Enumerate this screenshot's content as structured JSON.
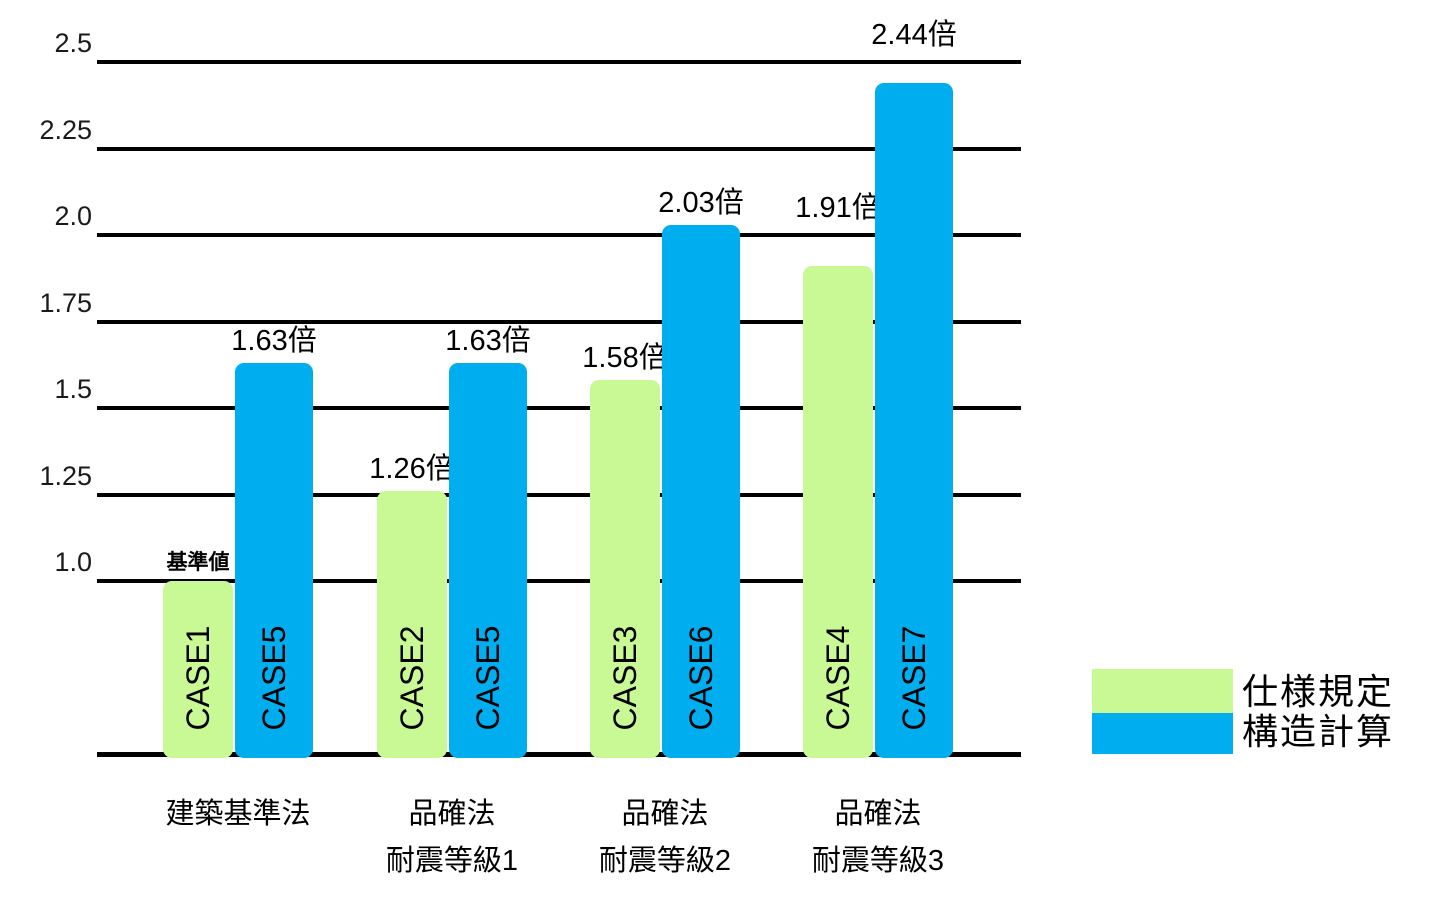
{
  "chart_data": {
    "type": "bar",
    "title": "",
    "background": "#FFFFFF",
    "grid_color": "#000000",
    "text_color": "#000000",
    "y_axis": {
      "min": 0.5,
      "max": 2.5,
      "tick_step": 0.25,
      "gridlines": true,
      "ticks": [
        {
          "value": 2.5,
          "label": "2.5"
        },
        {
          "value": 2.25,
          "label": "2.25"
        },
        {
          "value": 2.0,
          "label": "2.0"
        },
        {
          "value": 1.75,
          "label": "1.75"
        },
        {
          "value": 1.5,
          "label": "1.5"
        },
        {
          "value": 1.25,
          "label": "1.25"
        },
        {
          "value": 1.0,
          "label": "1.0"
        }
      ]
    },
    "series": [
      {
        "name": "仕様規定",
        "color": "#C9F995"
      },
      {
        "name": "構造計算",
        "color": "#00AEEF"
      }
    ],
    "groups": [
      {
        "category_lines": [
          "建築基準法",
          ""
        ],
        "bars": [
          {
            "series": 0,
            "case_label": "CASE1",
            "value": 1.0,
            "value_label": "基準値",
            "label_small": true
          },
          {
            "series": 1,
            "case_label": "CASE5",
            "value": 1.63,
            "value_label": "1.63倍",
            "label_small": false
          }
        ]
      },
      {
        "category_lines": [
          "品確法",
          "耐震等級1"
        ],
        "bars": [
          {
            "series": 0,
            "case_label": "CASE2",
            "value": 1.26,
            "value_label": "1.26倍",
            "label_small": false
          },
          {
            "series": 1,
            "case_label": "CASE5",
            "value": 1.63,
            "value_label": "1.63倍",
            "label_small": false
          }
        ]
      },
      {
        "category_lines": [
          "品確法",
          "耐震等級2"
        ],
        "bars": [
          {
            "series": 0,
            "case_label": "CASE3",
            "value": 1.58,
            "value_label": "1.58倍",
            "label_small": false
          },
          {
            "series": 1,
            "case_label": "CASE6",
            "value": 2.03,
            "value_label": "2.03倍",
            "label_small": false
          }
        ]
      },
      {
        "category_lines": [
          "品確法",
          "耐震等級3"
        ],
        "bars": [
          {
            "series": 0,
            "case_label": "CASE4",
            "value": 1.91,
            "value_label": "1.91倍",
            "label_small": false
          },
          {
            "series": 1,
            "case_label": "CASE7",
            "value": 2.44,
            "value_label": "2.44倍",
            "label_small": false
          }
        ]
      }
    ],
    "legend": {
      "position": "bottom-right",
      "items": [
        {
          "label": "仕様規定",
          "color": "#C9F995"
        },
        {
          "label": "構造計算",
          "color": "#00AEEF"
        }
      ]
    }
  }
}
